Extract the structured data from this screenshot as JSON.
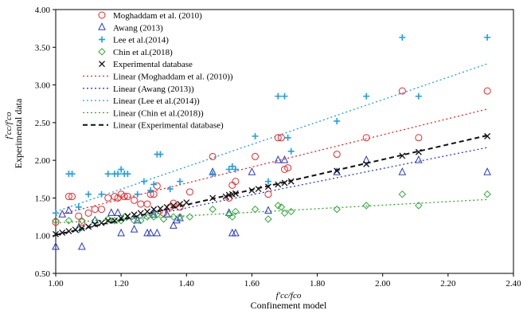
{
  "chart_data": {
    "type": "scatter",
    "xlabel_main": "f'cc/fco",
    "xlabel_sub": "Confinement model",
    "ylabel_main": "f'cc/f'co",
    "ylabel_sub": "Experimental data",
    "xlim": [
      1.0,
      2.4
    ],
    "ylim": [
      0.5,
      4.0
    ],
    "xticks": [
      "1.00",
      "1.20",
      "1.40",
      "1.60",
      "1.80",
      "2.00",
      "2.20",
      "2.40"
    ],
    "yticks": [
      "0.50",
      "1.00",
      "1.50",
      "2.00",
      "2.50",
      "3.00",
      "3.50",
      "4.00"
    ],
    "grid": false,
    "legend_position": "top-left",
    "series": [
      {
        "name": "Moghaddam et al. (2010)",
        "marker": "circle",
        "color": "#e8262a",
        "points": [
          [
            1.0,
            1.18
          ],
          [
            1.04,
            1.52
          ],
          [
            1.05,
            1.52
          ],
          [
            1.07,
            1.26
          ],
          [
            1.08,
            1.18
          ],
          [
            1.1,
            1.3
          ],
          [
            1.12,
            1.35
          ],
          [
            1.14,
            1.35
          ],
          [
            1.16,
            1.5
          ],
          [
            1.18,
            1.52
          ],
          [
            1.19,
            1.5
          ],
          [
            1.2,
            1.55
          ],
          [
            1.21,
            1.52
          ],
          [
            1.22,
            1.52
          ],
          [
            1.24,
            1.47
          ],
          [
            1.26,
            1.42
          ],
          [
            1.28,
            1.42
          ],
          [
            1.29,
            1.55
          ],
          [
            1.3,
            1.55
          ],
          [
            1.31,
            1.66
          ],
          [
            1.33,
            1.3
          ],
          [
            1.35,
            1.38
          ],
          [
            1.36,
            1.43
          ],
          [
            1.38,
            1.38
          ],
          [
            1.41,
            1.58
          ],
          [
            1.48,
            2.05
          ],
          [
            1.53,
            1.5
          ],
          [
            1.54,
            1.67
          ],
          [
            1.55,
            1.72
          ],
          [
            1.61,
            2.05
          ],
          [
            1.65,
            1.55
          ],
          [
            1.68,
            2.3
          ],
          [
            1.69,
            2.3
          ],
          [
            1.7,
            1.88
          ],
          [
            1.71,
            1.9
          ],
          [
            1.86,
            2.08
          ],
          [
            1.95,
            2.3
          ],
          [
            2.06,
            2.92
          ],
          [
            2.11,
            2.3
          ],
          [
            2.32,
            2.92
          ]
        ]
      },
      {
        "name": "Awang (2013)",
        "marker": "triangle",
        "color": "#2a3bc8",
        "points": [
          [
            1.0,
            0.85
          ],
          [
            1.02,
            1.28
          ],
          [
            1.04,
            1.33
          ],
          [
            1.07,
            1.1
          ],
          [
            1.08,
            0.85
          ],
          [
            1.12,
            1.2
          ],
          [
            1.17,
            1.3
          ],
          [
            1.19,
            1.3
          ],
          [
            1.2,
            1.03
          ],
          [
            1.24,
            1.08
          ],
          [
            1.25,
            1.2
          ],
          [
            1.28,
            1.03
          ],
          [
            1.29,
            1.03
          ],
          [
            1.3,
            1.28
          ],
          [
            1.31,
            1.03
          ],
          [
            1.34,
            1.28
          ],
          [
            1.36,
            1.13
          ],
          [
            1.37,
            1.2
          ],
          [
            1.38,
            1.23
          ],
          [
            1.48,
            1.84
          ],
          [
            1.53,
            1.3
          ],
          [
            1.54,
            1.03
          ],
          [
            1.55,
            1.03
          ],
          [
            1.6,
            1.84
          ],
          [
            1.65,
            1.33
          ],
          [
            1.68,
            2.0
          ],
          [
            1.7,
            2.0
          ],
          [
            1.86,
            1.84
          ],
          [
            1.95,
            2.0
          ],
          [
            2.06,
            1.84
          ],
          [
            2.11,
            2.0
          ],
          [
            2.32,
            1.84
          ]
        ]
      },
      {
        "name": "Lee et al.(2014)",
        "marker": "plus",
        "color": "#1f9fe0",
        "points": [
          [
            1.0,
            1.3
          ],
          [
            1.04,
            1.82
          ],
          [
            1.05,
            1.82
          ],
          [
            1.07,
            1.38
          ],
          [
            1.1,
            1.55
          ],
          [
            1.14,
            1.55
          ],
          [
            1.16,
            1.82
          ],
          [
            1.18,
            1.82
          ],
          [
            1.19,
            1.82
          ],
          [
            1.2,
            1.88
          ],
          [
            1.21,
            1.82
          ],
          [
            1.22,
            1.82
          ],
          [
            1.25,
            1.55
          ],
          [
            1.27,
            1.72
          ],
          [
            1.29,
            1.6
          ],
          [
            1.3,
            1.68
          ],
          [
            1.31,
            2.08
          ],
          [
            1.32,
            2.08
          ],
          [
            1.35,
            1.62
          ],
          [
            1.38,
            1.72
          ],
          [
            1.48,
            1.82
          ],
          [
            1.53,
            1.88
          ],
          [
            1.54,
            1.92
          ],
          [
            1.55,
            1.88
          ],
          [
            1.61,
            2.32
          ],
          [
            1.65,
            1.72
          ],
          [
            1.68,
            2.85
          ],
          [
            1.7,
            2.85
          ],
          [
            1.71,
            2.3
          ],
          [
            1.72,
            2.12
          ],
          [
            1.86,
            2.52
          ],
          [
            1.95,
            2.85
          ],
          [
            2.06,
            3.63
          ],
          [
            2.11,
            2.85
          ],
          [
            2.32,
            3.63
          ]
        ]
      },
      {
        "name": "Chin et al.(2018)",
        "marker": "diamond",
        "color": "#32a836",
        "points": [
          [
            1.0,
            1.2
          ],
          [
            1.04,
            1.2
          ],
          [
            1.07,
            1.08
          ],
          [
            1.08,
            1.2
          ],
          [
            1.12,
            1.2
          ],
          [
            1.16,
            1.22
          ],
          [
            1.18,
            1.2
          ],
          [
            1.2,
            1.2
          ],
          [
            1.21,
            1.25
          ],
          [
            1.24,
            1.2
          ],
          [
            1.26,
            1.2
          ],
          [
            1.28,
            1.25
          ],
          [
            1.3,
            1.25
          ],
          [
            1.31,
            1.28
          ],
          [
            1.33,
            1.22
          ],
          [
            1.36,
            1.25
          ],
          [
            1.38,
            1.25
          ],
          [
            1.41,
            1.25
          ],
          [
            1.48,
            1.35
          ],
          [
            1.53,
            1.28
          ],
          [
            1.54,
            1.25
          ],
          [
            1.55,
            1.32
          ],
          [
            1.61,
            1.35
          ],
          [
            1.65,
            1.22
          ],
          [
            1.68,
            1.4
          ],
          [
            1.69,
            1.38
          ],
          [
            1.7,
            1.3
          ],
          [
            1.72,
            1.32
          ],
          [
            1.86,
            1.35
          ],
          [
            1.95,
            1.4
          ],
          [
            2.06,
            1.55
          ],
          [
            2.11,
            1.4
          ],
          [
            2.32,
            1.55
          ]
        ]
      },
      {
        "name": "Experimental database",
        "marker": "x",
        "color": "#111111",
        "points": [
          [
            1.0,
            1.02
          ],
          [
            1.02,
            1.04
          ],
          [
            1.04,
            1.06
          ],
          [
            1.06,
            1.08
          ],
          [
            1.08,
            1.1
          ],
          [
            1.1,
            1.12
          ],
          [
            1.12,
            1.15
          ],
          [
            1.14,
            1.17
          ],
          [
            1.16,
            1.2
          ],
          [
            1.18,
            1.2
          ],
          [
            1.2,
            1.23
          ],
          [
            1.22,
            1.26
          ],
          [
            1.24,
            1.28
          ],
          [
            1.26,
            1.3
          ],
          [
            1.28,
            1.32
          ],
          [
            1.3,
            1.35
          ],
          [
            1.32,
            1.36
          ],
          [
            1.34,
            1.38
          ],
          [
            1.36,
            1.4
          ],
          [
            1.38,
            1.42
          ],
          [
            1.4,
            1.44
          ],
          [
            1.48,
            1.5
          ],
          [
            1.52,
            1.52
          ],
          [
            1.53,
            1.54
          ],
          [
            1.54,
            1.55
          ],
          [
            1.55,
            1.56
          ],
          [
            1.6,
            1.6
          ],
          [
            1.62,
            1.62
          ],
          [
            1.65,
            1.65
          ],
          [
            1.68,
            1.68
          ],
          [
            1.7,
            1.7
          ],
          [
            1.72,
            1.72
          ],
          [
            1.86,
            1.86
          ],
          [
            1.95,
            1.95
          ],
          [
            2.06,
            2.06
          ],
          [
            2.11,
            2.11
          ],
          [
            2.32,
            2.32
          ]
        ]
      }
    ],
    "trendlines": [
      {
        "name": "Linear (Moghaddam et al. (2010))",
        "color": "#e8262a",
        "dash": "2,3",
        "width": 1.3,
        "x": [
          1.0,
          2.32
        ],
        "y": [
          1.27,
          2.68
        ]
      },
      {
        "name": "Linear (Awang (2013))",
        "color": "#2a3bc8",
        "dash": "2,3",
        "width": 1.3,
        "x": [
          1.0,
          2.32
        ],
        "y": [
          1.02,
          2.17
        ]
      },
      {
        "name": "Linear (Lee et al.(2014))",
        "color": "#1f9fe0",
        "dash": "2,3",
        "width": 1.3,
        "x": [
          1.0,
          2.32
        ],
        "y": [
          1.32,
          3.28
        ]
      },
      {
        "name": "Linear (Chin et al.(2018))",
        "color": "#32a836",
        "dash": "2,3",
        "width": 1.3,
        "x": [
          1.0,
          2.32
        ],
        "y": [
          1.17,
          1.48
        ]
      },
      {
        "name": "Linear (Experimental database)",
        "color": "#111111",
        "dash": "6,4",
        "width": 2,
        "x": [
          1.0,
          2.32
        ],
        "y": [
          1.01,
          2.33
        ]
      }
    ]
  }
}
